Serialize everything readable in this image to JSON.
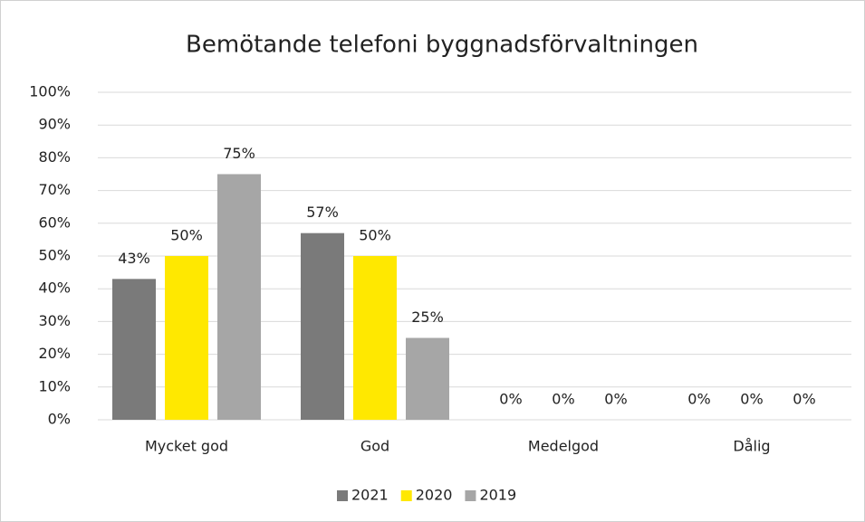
{
  "chart_data": {
    "type": "bar",
    "title": "Bemötande telefoni byggnadsförvaltningen",
    "categories": [
      "Mycket god",
      "God",
      "Medelgod",
      "Dålig"
    ],
    "series": [
      {
        "name": "2021",
        "color": "#7a7a7a",
        "values": [
          43,
          57,
          0,
          0
        ],
        "value_labels": [
          "43%",
          "57%",
          "0%",
          "0%"
        ]
      },
      {
        "name": "2020",
        "color": "#ffe800",
        "values": [
          50,
          50,
          0,
          0
        ],
        "value_labels": [
          "50%",
          "50%",
          "0%",
          "0%"
        ]
      },
      {
        "name": "2019",
        "color": "#a6a6a6",
        "values": [
          75,
          25,
          0,
          0
        ],
        "value_labels": [
          "75%",
          "25%",
          "0%",
          "0%"
        ]
      }
    ],
    "ylim": [
      0,
      100
    ],
    "yticks": [
      {
        "value": 0,
        "label": "0%"
      },
      {
        "value": 10,
        "label": "10%"
      },
      {
        "value": 20,
        "label": "20%"
      },
      {
        "value": 30,
        "label": "30%"
      },
      {
        "value": 40,
        "label": "40%"
      },
      {
        "value": 50,
        "label": "50%"
      },
      {
        "value": 60,
        "label": "60%"
      },
      {
        "value": 70,
        "label": "70%"
      },
      {
        "value": 80,
        "label": "80%"
      },
      {
        "value": 90,
        "label": "90%"
      },
      {
        "value": 100,
        "label": "100%"
      }
    ],
    "grid": true,
    "legend": "bottom"
  }
}
